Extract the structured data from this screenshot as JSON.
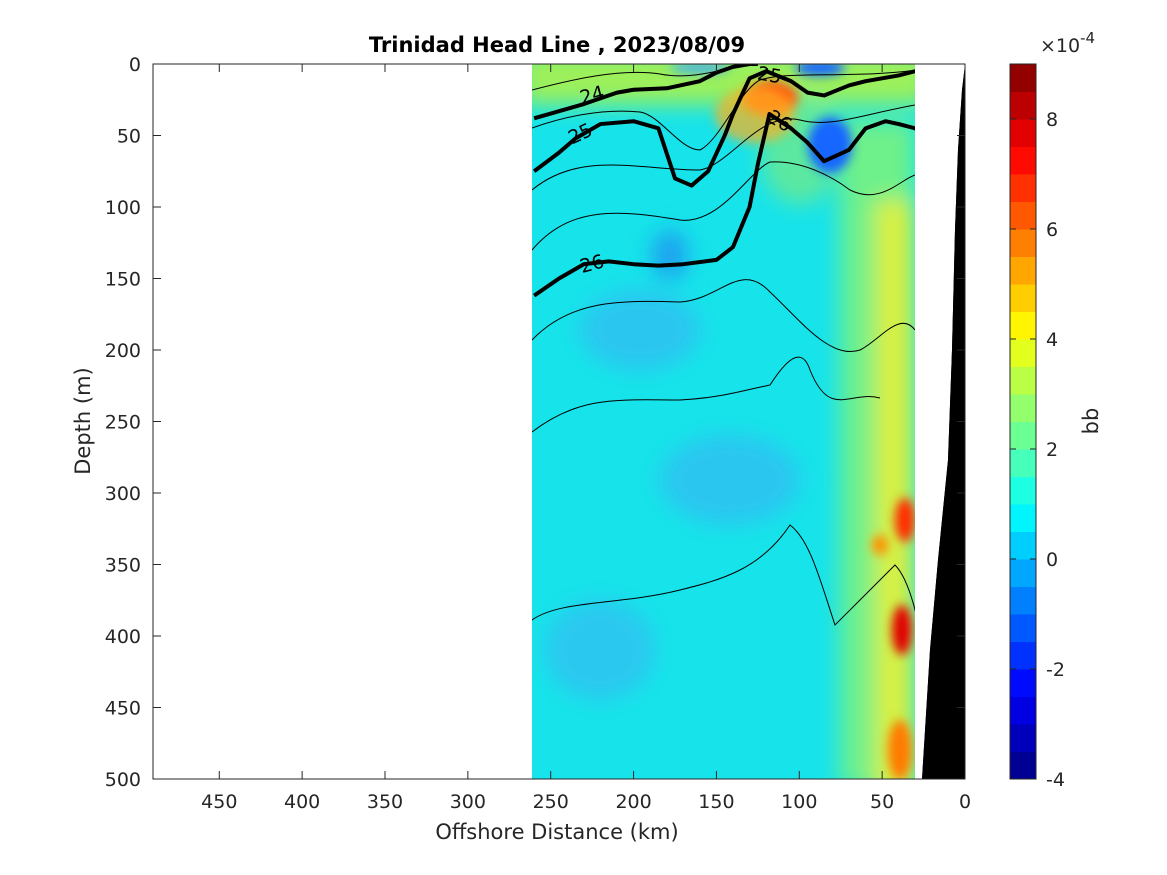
{
  "chart_data": {
    "type": "heatmap",
    "title": "Trinidad Head Line , 2023/08/09",
    "xlabel": "Offshore Distance (km)",
    "ylabel": "Depth (m)",
    "xlim": [
      490,
      0
    ],
    "ylim": [
      0,
      500
    ],
    "x_reversed": true,
    "y_reversed": true,
    "x_ticks": [
      "450",
      "400",
      "350",
      "300",
      "250",
      "200",
      "150",
      "100",
      "50",
      "0"
    ],
    "x_tick_values": [
      450,
      400,
      350,
      300,
      250,
      200,
      150,
      100,
      50,
      0
    ],
    "y_ticks": [
      "0",
      "50",
      "100",
      "150",
      "200",
      "250",
      "300",
      "350",
      "400",
      "450",
      "500"
    ],
    "y_tick_values": [
      0,
      50,
      100,
      150,
      200,
      250,
      300,
      350,
      400,
      450,
      500
    ],
    "data_extent_km": [
      260,
      30
    ],
    "colorbar": {
      "label": "bb",
      "exponent": "×10",
      "exponent_power": "-4",
      "range": [
        -4,
        9
      ],
      "ticks": [
        "-4",
        "-2",
        "0",
        "2",
        "4",
        "6",
        "8"
      ],
      "tick_values": [
        -4,
        -2,
        0,
        2,
        4,
        6,
        8
      ],
      "colormap": "jet"
    },
    "field_summary": [
      {
        "region": "offshore below 150 m",
        "bb_x1e-4": 1
      },
      {
        "region": "surface layer 0-40 m",
        "bb_x1e-4": 3
      },
      {
        "region": "near x=120 km, z=30 m",
        "bb_x1e-4": 6.5
      },
      {
        "region": "near x=85 km, z=50 m",
        "bb_x1e-4": -0.5
      },
      {
        "region": "near-shore band x=35-50 km",
        "bb_x1e-4": 4
      },
      {
        "region": "near-shore x=32 km, z=320-420 m",
        "bb_x1e-4": 8
      }
    ],
    "isopycnals": [
      {
        "label": "24",
        "x": [
          260,
          230,
          210,
          200,
          180,
          160,
          150,
          140,
          130,
          125
        ],
        "y": [
          38,
          28,
          20,
          18,
          17,
          12,
          6,
          2,
          0,
          0
        ]
      },
      {
        "label": "25",
        "x": [
          260,
          245,
          235,
          220,
          200,
          185,
          175,
          165,
          155,
          145,
          140,
          130,
          120,
          105,
          95,
          85,
          70,
          60,
          50,
          40,
          30,
          20
        ],
        "y": [
          75,
          62,
          52,
          42,
          40,
          45,
          80,
          85,
          75,
          50,
          35,
          10,
          5,
          12,
          20,
          22,
          15,
          12,
          10,
          8,
          5,
          2
        ]
      },
      {
        "label": "26",
        "x": [
          260,
          245,
          230,
          215,
          200,
          185,
          170,
          150,
          140,
          130,
          125,
          118,
          105,
          95,
          85,
          70,
          60,
          48,
          40,
          30,
          18
        ],
        "y": [
          162,
          150,
          140,
          138,
          140,
          141,
          140,
          137,
          128,
          100,
          70,
          35,
          45,
          55,
          68,
          60,
          45,
          40,
          42,
          45,
          58
        ]
      }
    ],
    "bathymetry": {
      "label": "seafloor",
      "color": "#000000"
    }
  }
}
